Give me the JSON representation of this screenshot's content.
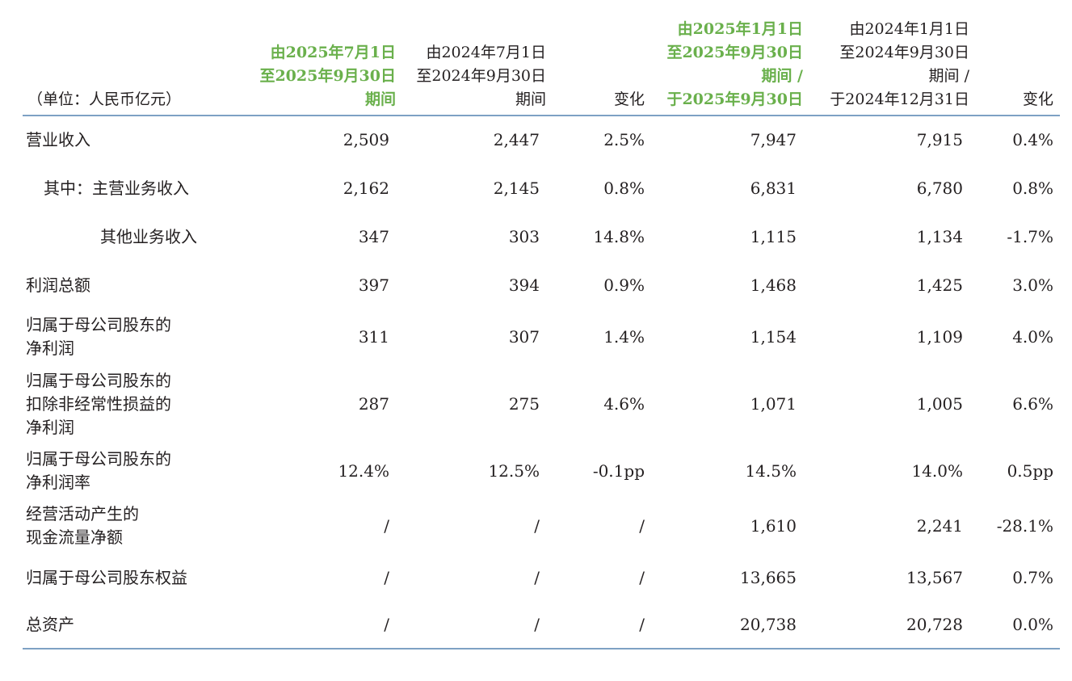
{
  "header": {
    "unit": "（单位：人民币亿元）",
    "col1": [
      "由2025年7月1日",
      "至2025年9月30日",
      "期间"
    ],
    "col2": [
      "由2024年7月1日",
      "至2024年9月30日",
      "期间"
    ],
    "col3": [
      "变化"
    ],
    "col4": [
      "由2025年1月1日",
      "至2025年9月30日",
      "期间 /",
      "于2025年9月30日"
    ],
    "col5": [
      "由2024年1月1日",
      "至2024年9月30日",
      "期间 /",
      "于2024年12月31日"
    ],
    "col6": [
      "变化"
    ]
  },
  "rows": [
    {
      "label": [
        "营业收入"
      ],
      "values": [
        "2,509",
        "2,447",
        "2.5%",
        "7,947",
        "7,915",
        "0.4%"
      ]
    },
    {
      "label": [
        "其中：主营业务收入"
      ],
      "values": [
        "2,162",
        "2,145",
        "0.8%",
        "6,831",
        "6,780",
        "0.8%"
      ]
    },
    {
      "label": [
        "其他业务收入"
      ],
      "values": [
        "347",
        "303",
        "14.8%",
        "1,115",
        "1,134",
        "-1.7%"
      ]
    },
    {
      "label": [
        "利润总额"
      ],
      "values": [
        "397",
        "394",
        "0.9%",
        "1,468",
        "1,425",
        "3.0%"
      ]
    },
    {
      "label": [
        "归属于母公司股东的",
        "净利润"
      ],
      "values": [
        "311",
        "307",
        "1.4%",
        "1,154",
        "1,109",
        "4.0%"
      ]
    },
    {
      "label": [
        "归属于母公司股东的",
        "扣除非经常性损益的",
        "净利润"
      ],
      "values": [
        "287",
        "275",
        "4.6%",
        "1,071",
        "1,005",
        "6.6%"
      ]
    },
    {
      "label": [
        "归属于母公司股东的",
        "净利润率"
      ],
      "values": [
        "12.4%",
        "12.5%",
        "-0.1pp",
        "14.5%",
        "14.0%",
        "0.5pp"
      ]
    },
    {
      "label": [
        "经营活动产生的",
        "现金流量净额"
      ],
      "values": [
        "/",
        "/",
        "/",
        "1,610",
        "2,241",
        "-28.1%"
      ]
    },
    {
      "label": [
        "归属于母公司股东权益"
      ],
      "values": [
        "/",
        "/",
        "/",
        "13,665",
        "13,567",
        "0.7%"
      ]
    },
    {
      "label": [
        "总资产"
      ],
      "values": [
        "/",
        "/",
        "/",
        "20,738",
        "20,728",
        "0.0%"
      ]
    }
  ],
  "colors": {
    "highlight": "#6ab04c",
    "rule": "#7ea1c4",
    "text": "#231f20"
  }
}
